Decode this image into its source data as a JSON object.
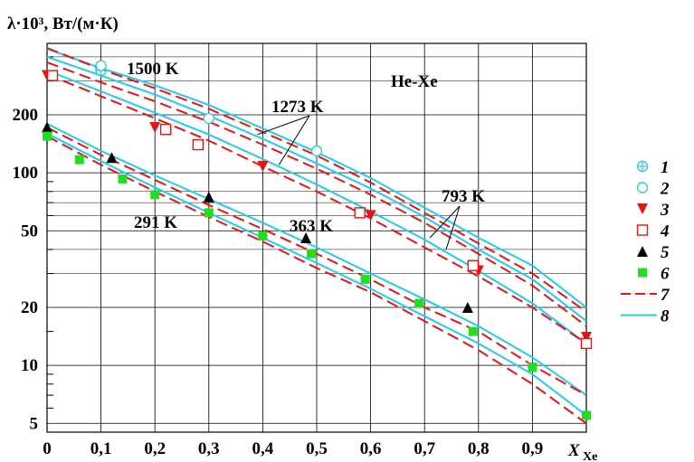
{
  "chart_data": {
    "type": "line",
    "title": "",
    "ylabel": "λ·10³,  Вт/(м·К)",
    "xlabel": "X",
    "xlabel_sub": "Xe",
    "xlim": [
      0,
      1
    ],
    "ylim_log": [
      4.5,
      470
    ],
    "y_scale": "log",
    "grid": true,
    "system_label": "He-Xe",
    "x_ticks": [
      "0",
      "0,1",
      "0,2",
      "0,3",
      "0,4",
      "0,5",
      "0,6",
      "0,7",
      "0,8",
      "0,9"
    ],
    "x_tick_values": [
      0,
      0.1,
      0.2,
      0.3,
      0.4,
      0.5,
      0.6,
      0.7,
      0.8,
      0.9
    ],
    "y_ticks": [
      "5",
      "10",
      "20",
      "50",
      "100",
      "200"
    ],
    "y_tick_values": [
      5,
      10,
      20,
      50,
      100,
      200
    ],
    "temperature_labels": [
      "1500 K",
      "1273 K",
      "793 K",
      "363 K",
      "291 K"
    ],
    "legend": {
      "position": "right",
      "entries": [
        {
          "label": "1",
          "marker": "circle-plus",
          "color": "#33ccdd"
        },
        {
          "label": "2",
          "marker": "circle",
          "color": "#33ccdd"
        },
        {
          "label": "3",
          "marker": "triangle-down",
          "color": "#ee1111"
        },
        {
          "label": "4",
          "marker": "square-open",
          "color": "#ee1111"
        },
        {
          "label": "5",
          "marker": "triangle-up",
          "color": "#000000"
        },
        {
          "label": "6",
          "marker": "square-filled",
          "color": "#22dd22"
        },
        {
          "label": "7",
          "marker": "dashed-line",
          "color": "#ee1111"
        },
        {
          "label": "8",
          "marker": "solid-line",
          "color": "#22ccee"
        }
      ]
    },
    "curves": [
      {
        "temperature": "1500 K",
        "x": [
          0,
          0.1,
          0.2,
          0.3,
          0.4,
          0.5,
          0.6,
          0.7,
          0.8,
          0.9,
          1.0
        ],
        "solid": [
          440,
          350,
          285,
          225,
          170,
          128,
          94,
          66,
          46,
          33,
          20
        ],
        "dashed": [
          445,
          345,
          275,
          215,
          163,
          123,
          89,
          62,
          43,
          30,
          19
        ]
      },
      {
        "temperature": "1500 K (lower branch)",
        "x": [
          0,
          0.1,
          0.2,
          0.3,
          0.4,
          0.5,
          0.6,
          0.7,
          0.8,
          0.9,
          1.0
        ],
        "solid": [
          400,
          320,
          255,
          198,
          150,
          112,
          83,
          59,
          40,
          28,
          17
        ],
        "dashed": [
          375,
          295,
          235,
          184,
          140,
          105,
          77,
          55,
          38,
          26,
          16
        ]
      },
      {
        "temperature": "1273 K",
        "x": [
          0,
          0.1,
          0.2,
          0.3,
          0.4,
          0.5,
          0.6,
          0.7,
          0.8,
          0.9,
          1.0
        ],
        "solid": [
          340,
          265,
          205,
          158,
          118,
          87,
          63,
          45,
          31,
          21,
          13
        ],
        "dashed": [
          325,
          250,
          192,
          147,
          108,
          80,
          58,
          41,
          29,
          20,
          13
        ]
      },
      {
        "temperature": "363 K",
        "x": [
          0,
          0.1,
          0.2,
          0.3,
          0.4,
          0.5,
          0.6,
          0.7,
          0.8,
          0.9,
          1.0
        ],
        "solid": [
          180,
          130,
          97,
          73,
          55,
          41,
          30,
          22,
          16,
          11,
          7
        ],
        "dashed": [
          172,
          124,
          92,
          68,
          51,
          38,
          28,
          20,
          15,
          10,
          7
        ]
      },
      {
        "temperature": "291 K",
        "x": [
          0,
          0.1,
          0.2,
          0.3,
          0.4,
          0.5,
          0.6,
          0.7,
          0.8,
          0.9,
          1.0
        ],
        "solid": [
          160,
          115,
          84,
          62,
          46,
          34,
          25,
          18,
          13,
          9,
          5.5
        ],
        "dashed": [
          155,
          110,
          80,
          59,
          44,
          32,
          24,
          17,
          12,
          8,
          5
        ]
      }
    ],
    "points": [
      {
        "series": "1",
        "x": 0.1,
        "y": 340
      },
      {
        "series": "2",
        "x": 0.1,
        "y": 360
      },
      {
        "series": "2",
        "x": 0.3,
        "y": 192
      },
      {
        "series": "2",
        "x": 0.5,
        "y": 130
      },
      {
        "series": "3",
        "x": 0,
        "y": 320
      },
      {
        "series": "3",
        "x": 0.2,
        "y": 172
      },
      {
        "series": "3",
        "x": 0.4,
        "y": 108
      },
      {
        "series": "3",
        "x": 0.6,
        "y": 60
      },
      {
        "series": "3",
        "x": 0.8,
        "y": 31
      },
      {
        "series": "3",
        "x": 1.0,
        "y": 14
      },
      {
        "series": "4",
        "x": 0.01,
        "y": 320
      },
      {
        "series": "4",
        "x": 0.22,
        "y": 168
      },
      {
        "series": "4",
        "x": 0.28,
        "y": 140
      },
      {
        "series": "4",
        "x": 0.58,
        "y": 62
      },
      {
        "series": "4",
        "x": 0.79,
        "y": 33
      },
      {
        "series": "4",
        "x": 1.0,
        "y": 13
      },
      {
        "series": "5",
        "x": 0,
        "y": 173
      },
      {
        "series": "5",
        "x": 0.12,
        "y": 120
      },
      {
        "series": "5",
        "x": 0.3,
        "y": 75
      },
      {
        "series": "5",
        "x": 0.48,
        "y": 46
      },
      {
        "series": "5",
        "x": 0.78,
        "y": 20
      },
      {
        "series": "6",
        "x": 0,
        "y": 155
      },
      {
        "series": "6",
        "x": 0.06,
        "y": 117
      },
      {
        "series": "6",
        "x": 0.14,
        "y": 93
      },
      {
        "series": "6",
        "x": 0.2,
        "y": 77
      },
      {
        "series": "6",
        "x": 0.3,
        "y": 62
      },
      {
        "series": "6",
        "x": 0.4,
        "y": 47
      },
      {
        "series": "6",
        "x": 0.49,
        "y": 38
      },
      {
        "series": "6",
        "x": 0.59,
        "y": 28
      },
      {
        "series": "6",
        "x": 0.69,
        "y": 21
      },
      {
        "series": "6",
        "x": 0.79,
        "y": 15
      },
      {
        "series": "6",
        "x": 0.9,
        "y": 9.8
      },
      {
        "series": "6",
        "x": 1.0,
        "y": 5.5
      }
    ]
  }
}
